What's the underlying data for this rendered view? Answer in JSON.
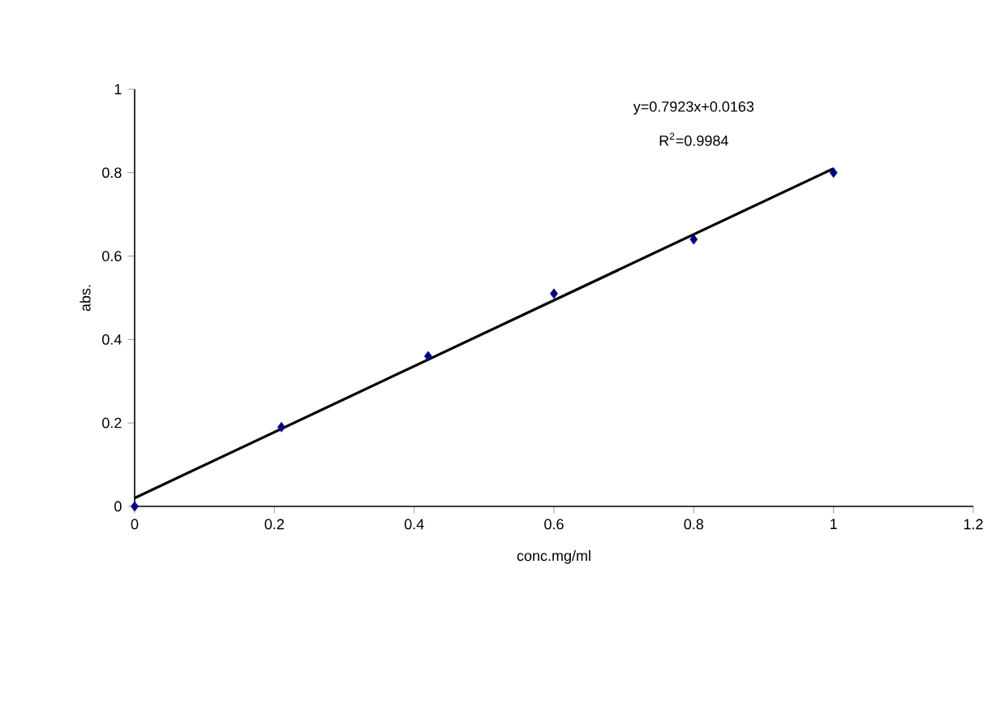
{
  "chart_data": {
    "type": "scatter",
    "xlabel": "conc.mg/ml",
    "ylabel": "abs.",
    "xlim": [
      0,
      1.2
    ],
    "ylim": [
      0,
      1
    ],
    "xticks": [
      0,
      0.2,
      0.4,
      0.6,
      0.8,
      1,
      1.2
    ],
    "yticks": [
      0,
      0.2,
      0.4,
      0.6,
      0.8,
      1
    ],
    "grid": false,
    "annotations": [
      "y=0.7923x+0.0163",
      "R$^{2}$=0.9984"
    ],
    "series": [
      {
        "color": "#000080",
        "marker": "diamond",
        "x": [
          0,
          0.21,
          0.42,
          0.6,
          0.8,
          1
        ],
        "values": [
          0,
          0.19,
          0.36,
          0.51,
          0.64,
          0.8
        ]
      },
      {
        "type": "line",
        "color": "#000000",
        "marker": "none",
        "line_style": "solid",
        "x": [
          0,
          1
        ],
        "values": [
          0.02,
          0.81
        ]
      }
    ]
  }
}
